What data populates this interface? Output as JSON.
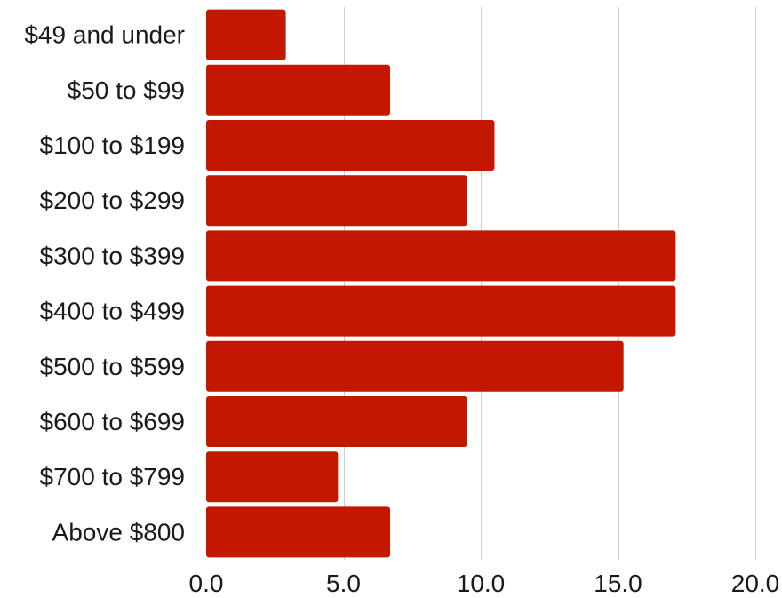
{
  "chart_data": {
    "type": "bar",
    "orientation": "horizontal",
    "categories": [
      "$49 and under",
      "$50 to $99",
      "$100 to $199",
      "$200 to $299",
      "$300 to $399",
      "$400 to $499",
      "$500 to $599",
      "$600 to $699",
      "$700 to $799",
      "Above $800"
    ],
    "values": [
      2.9,
      6.7,
      10.5,
      9.5,
      17.1,
      17.1,
      15.2,
      9.5,
      4.8,
      6.7
    ],
    "xlim": [
      0,
      20
    ],
    "xticks": [
      0,
      5,
      10,
      15,
      20
    ],
    "xtick_labels": [
      "0.0",
      "5.0",
      "10.0",
      "15.0",
      "20.0"
    ],
    "title": "",
    "xlabel": "",
    "ylabel": "",
    "grid": "vertical",
    "legend": "none",
    "bar_color": "#c41700",
    "grid_color": "#cfcfcf",
    "text_color": "#1a1a1a"
  }
}
